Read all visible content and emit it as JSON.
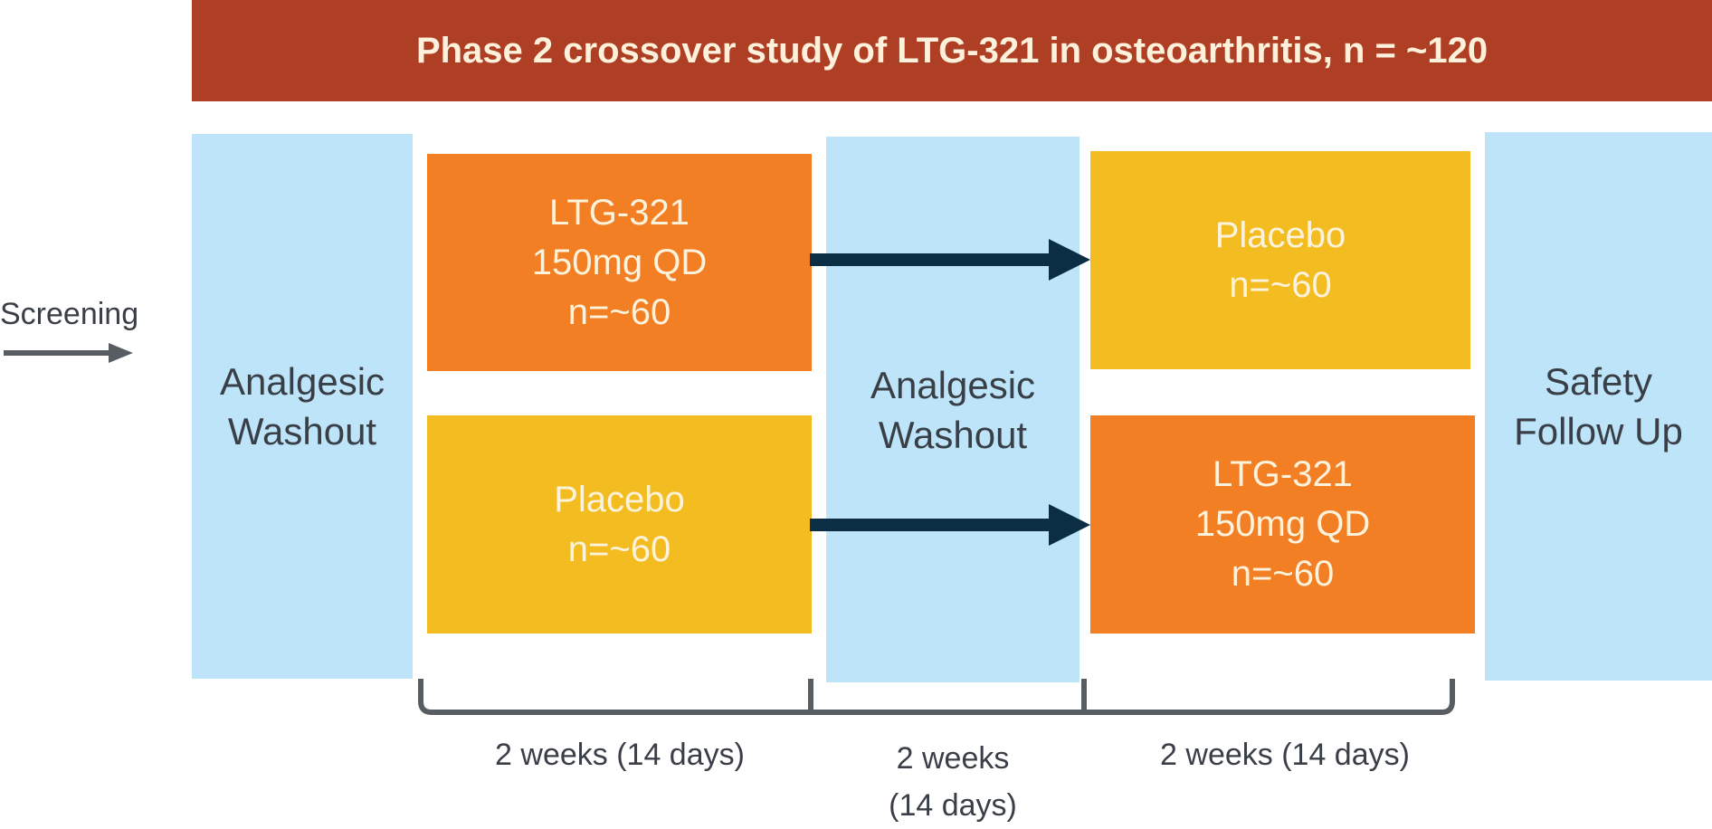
{
  "header": {
    "title": "Phase 2 crossover study of LTG-321 in osteoarthritis, n = ~120"
  },
  "screening": {
    "label": "Screening"
  },
  "columns": {
    "washout_1": {
      "line1": "Analgesic",
      "line2": "Washout"
    },
    "washout_2": {
      "line1": "Analgesic",
      "line2": "Washout"
    },
    "follow_up": {
      "line1": "Safety",
      "line2": "Follow Up"
    }
  },
  "period_1": {
    "arm_a": {
      "line1": "LTG-321",
      "line2": "150mg QD",
      "line3": "n=~60"
    },
    "arm_b": {
      "line1": "Placebo",
      "line2": "n=~60"
    }
  },
  "period_2": {
    "arm_a": {
      "line1": "Placebo",
      "line2": "n=~60"
    },
    "arm_b": {
      "line1": "LTG-321",
      "line2": "150mg QD",
      "line3": "n=~60"
    }
  },
  "durations": {
    "period_1": "2 weeks (14 days)",
    "washout_line1": "2 weeks",
    "washout_line2": "(14 days)",
    "period_2": "2 weeks (14 days)"
  },
  "colors": {
    "header": "#AF3F24",
    "washout": "#BDE4F8",
    "drug": "#F27F23",
    "placebo": "#F3BC20",
    "arrow": "#0B2E45",
    "screening_arrow": "#585D63",
    "bracket": "#585D63"
  }
}
